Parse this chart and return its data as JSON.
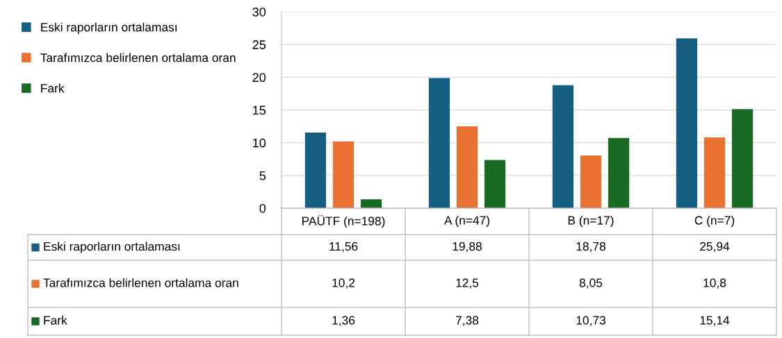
{
  "chart_data": {
    "type": "bar",
    "categories": [
      "PAÜTF (n=198)",
      "A (n=47)",
      "B (n=17)",
      "C (n=7)"
    ],
    "series": [
      {
        "name": "Eski raporların ortalaması",
        "color": "#156082",
        "values": [
          11.56,
          19.88,
          18.78,
          25.94
        ],
        "value_labels": [
          "11,56",
          "19,88",
          "18,78",
          "25,94"
        ]
      },
      {
        "name": "Tarafımızca belirlenen ortalama oran",
        "color": "#e97132",
        "values": [
          10.2,
          12.5,
          8.05,
          10.8
        ],
        "value_labels": [
          "10,2",
          "12,5",
          "8,05",
          "10,8"
        ]
      },
      {
        "name": "Fark",
        "color": "#196b24",
        "values": [
          1.36,
          7.38,
          10.73,
          15.14
        ],
        "value_labels": [
          "1,36",
          "7,38",
          "10,73",
          "15,14"
        ]
      }
    ],
    "ylim": [
      0,
      30
    ],
    "yticks": [
      0,
      5,
      10,
      15,
      20,
      25,
      30
    ],
    "grid": "y",
    "legend": "left"
  }
}
